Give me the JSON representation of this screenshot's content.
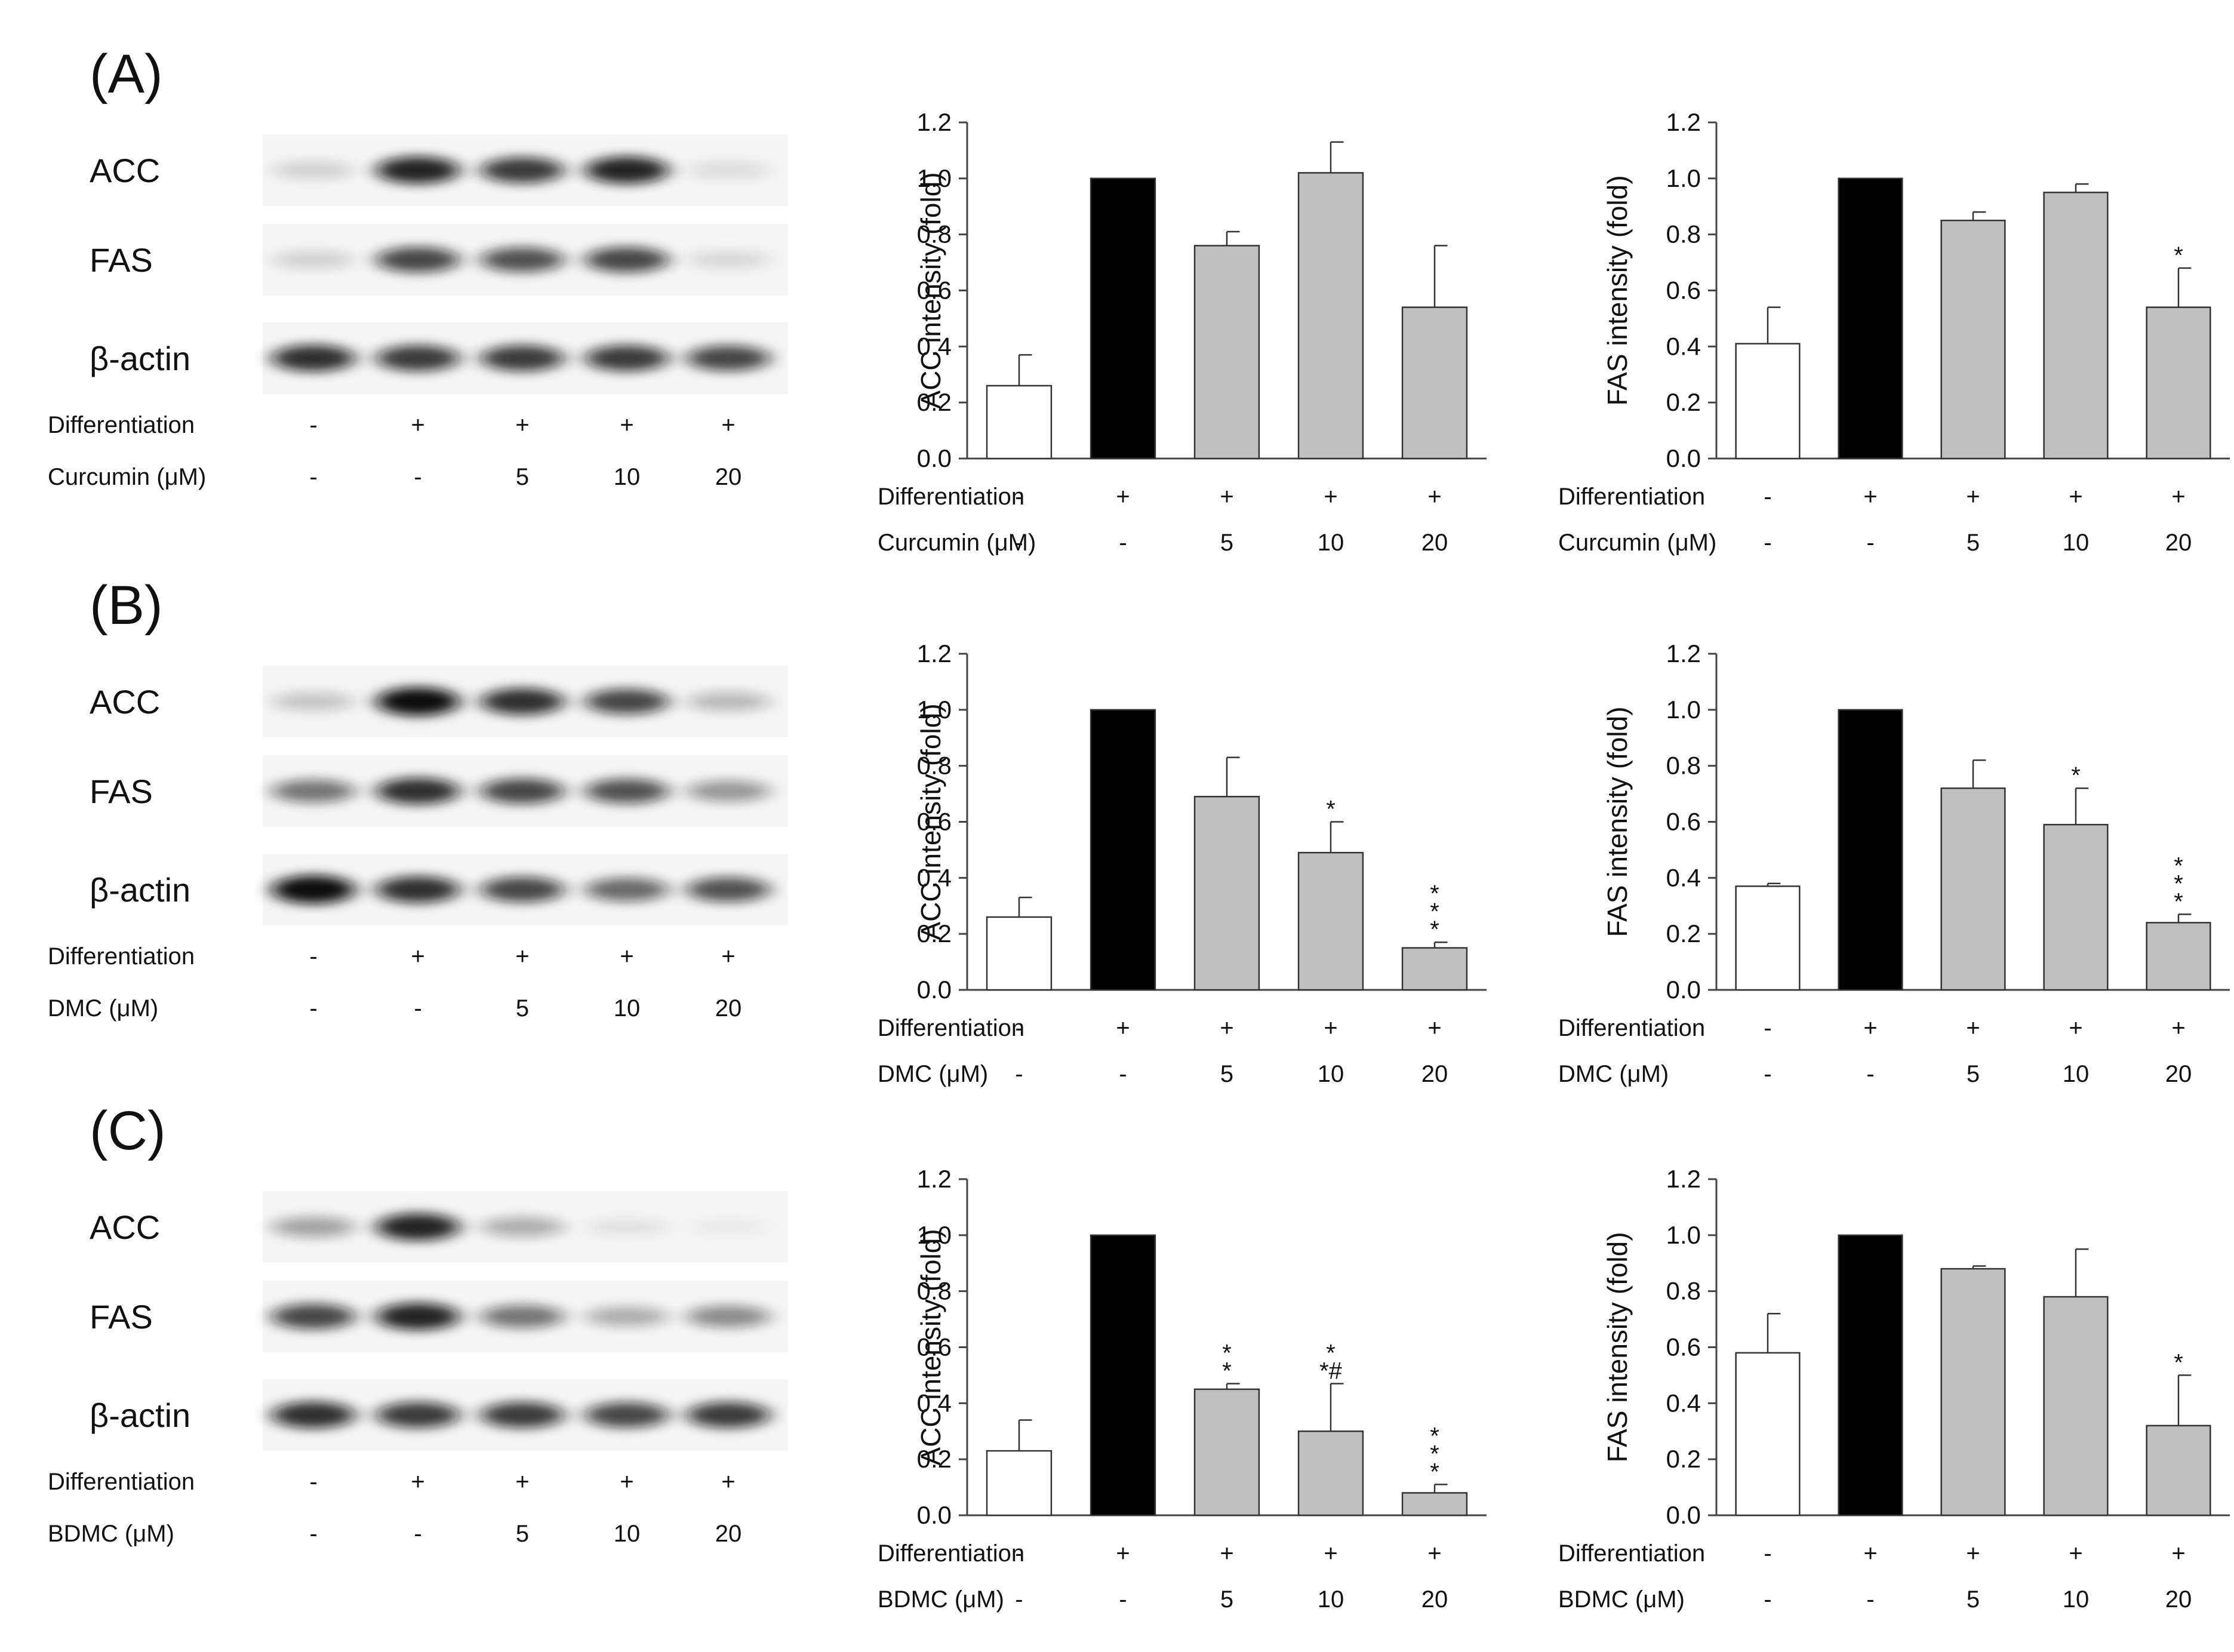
{
  "panels": [
    {
      "label": "(A)",
      "blot": {
        "proteins": [
          "ACC",
          "FAS",
          "β-actin"
        ],
        "intensities": [
          [
            0.15,
            0.9,
            0.8,
            0.9,
            0.1
          ],
          [
            0.15,
            0.75,
            0.7,
            0.75,
            0.12
          ],
          [
            0.85,
            0.8,
            0.8,
            0.8,
            0.75
          ]
        ],
        "row_labels": [
          "Differentiation",
          "Curcumin (μM)"
        ],
        "row_values": [
          [
            "-",
            "+",
            "+",
            "+",
            "+"
          ],
          [
            "-",
            "-",
            "5",
            "10",
            "20"
          ]
        ]
      }
    },
    {
      "label": "(B)",
      "blot": {
        "proteins": [
          "ACC",
          "FAS",
          "β-actin"
        ],
        "intensities": [
          [
            0.2,
            1.0,
            0.85,
            0.75,
            0.25
          ],
          [
            0.55,
            0.85,
            0.75,
            0.7,
            0.4
          ],
          [
            1.0,
            0.85,
            0.75,
            0.6,
            0.7
          ]
        ],
        "row_labels": [
          "Differentiation",
          "DMC (μM)"
        ],
        "row_values": [
          [
            "-",
            "+",
            "+",
            "+",
            "+"
          ],
          [
            "-",
            "-",
            "5",
            "10",
            "20"
          ]
        ]
      }
    },
    {
      "label": "(C)",
      "blot": {
        "proteins": [
          "ACC",
          "FAS",
          "β-actin"
        ],
        "intensities": [
          [
            0.35,
            0.9,
            0.3,
            0.08,
            0.03
          ],
          [
            0.75,
            0.9,
            0.55,
            0.3,
            0.45
          ],
          [
            0.85,
            0.8,
            0.8,
            0.75,
            0.8
          ]
        ],
        "row_labels": [
          "Differentiation",
          "BDMC (μM)"
        ],
        "row_values": [
          [
            "-",
            "+",
            "+",
            "+",
            "+"
          ],
          [
            "-",
            "-",
            "5",
            "10",
            "20"
          ]
        ]
      }
    }
  ],
  "chart_data": [
    {
      "type": "bar",
      "panel": "(A)",
      "ylabel": "ACC intensity (fold)",
      "ylim": [
        0,
        1.2
      ],
      "yticks": [
        "0.0",
        "0.2",
        "0.4",
        "0.6",
        "0.8",
        "1.0",
        "1.2"
      ],
      "values": [
        0.26,
        1.0,
        0.76,
        1.02,
        0.54
      ],
      "errors": [
        0.11,
        0,
        0.05,
        0.11,
        0.22
      ],
      "annotations": [
        "",
        "",
        "",
        "",
        ""
      ],
      "row_labels": [
        "Differentiation",
        "Curcumin (μM)"
      ],
      "row_values": [
        [
          "-",
          "+",
          "+",
          "+",
          "+"
        ],
        [
          "-",
          "-",
          "5",
          "10",
          "20"
        ]
      ]
    },
    {
      "type": "bar",
      "panel": "(A)",
      "ylabel": "FAS intensity (fold)",
      "ylim": [
        0,
        1.2
      ],
      "yticks": [
        "0.0",
        "0.2",
        "0.4",
        "0.6",
        "0.8",
        "1.0",
        "1.2"
      ],
      "values": [
        0.41,
        1.0,
        0.85,
        0.95,
        0.54
      ],
      "errors": [
        0.13,
        0,
        0.03,
        0.03,
        0.14
      ],
      "annotations": [
        "",
        "",
        "",
        "",
        "*"
      ],
      "row_labels": [
        "Differentiation",
        "Curcumin (μM)"
      ],
      "row_values": [
        [
          "-",
          "+",
          "+",
          "+",
          "+"
        ],
        [
          "-",
          "-",
          "5",
          "10",
          "20"
        ]
      ]
    },
    {
      "type": "bar",
      "panel": "(B)",
      "ylabel": "ACC intensity (fold)",
      "ylim": [
        0,
        1.2
      ],
      "yticks": [
        "0.0",
        "0.2",
        "0.4",
        "0.6",
        "0.8",
        "1.0",
        "1.2"
      ],
      "values": [
        0.26,
        1.0,
        0.69,
        0.49,
        0.15
      ],
      "errors": [
        0.07,
        0,
        0.14,
        0.11,
        0.02
      ],
      "annotations": [
        "",
        "",
        "",
        "*",
        "*\n*\n*"
      ],
      "row_labels": [
        "Differentiation",
        "DMC (μM)"
      ],
      "row_values": [
        [
          "-",
          "+",
          "+",
          "+",
          "+"
        ],
        [
          "-",
          "-",
          "5",
          "10",
          "20"
        ]
      ]
    },
    {
      "type": "bar",
      "panel": "(B)",
      "ylabel": "FAS intensity (fold)",
      "ylim": [
        0,
        1.2
      ],
      "yticks": [
        "0.0",
        "0.2",
        "0.4",
        "0.6",
        "0.8",
        "1.0",
        "1.2"
      ],
      "values": [
        0.37,
        1.0,
        0.72,
        0.59,
        0.24
      ],
      "errors": [
        0.01,
        0,
        0.1,
        0.13,
        0.03
      ],
      "annotations": [
        "",
        "",
        "",
        "*",
        "*\n*\n*"
      ],
      "row_labels": [
        "Differentiation",
        "DMC (μM)"
      ],
      "row_values": [
        [
          "-",
          "+",
          "+",
          "+",
          "+"
        ],
        [
          "-",
          "-",
          "5",
          "10",
          "20"
        ]
      ]
    },
    {
      "type": "bar",
      "panel": "(C)",
      "ylabel": "ACC intensity (fold)",
      "ylim": [
        0,
        1.2
      ],
      "yticks": [
        "0.0",
        "0.2",
        "0.4",
        "0.6",
        "0.8",
        "1.0",
        "1.2"
      ],
      "values": [
        0.23,
        1.0,
        0.45,
        0.3,
        0.08
      ],
      "errors": [
        0.11,
        0,
        0.02,
        0.17,
        0.03
      ],
      "annotations": [
        "",
        "",
        "*\n*",
        "*\n*#",
        "*\n*\n*"
      ],
      "row_labels": [
        "Differentiation",
        "BDMC (μM)"
      ],
      "row_values": [
        [
          "-",
          "+",
          "+",
          "+",
          "+"
        ],
        [
          "-",
          "-",
          "5",
          "10",
          "20"
        ]
      ]
    },
    {
      "type": "bar",
      "panel": "(C)",
      "ylabel": "FAS intensity (fold)",
      "ylim": [
        0,
        1.2
      ],
      "yticks": [
        "0.0",
        "0.2",
        "0.4",
        "0.6",
        "0.8",
        "1.0",
        "1.2"
      ],
      "values": [
        0.58,
        1.0,
        0.88,
        0.78,
        0.32
      ],
      "errors": [
        0.14,
        0,
        0.01,
        0.17,
        0.18
      ],
      "annotations": [
        "",
        "",
        "",
        "",
        "*"
      ],
      "row_labels": [
        "Differentiation",
        "BDMC (μM)"
      ],
      "row_values": [
        [
          "-",
          "+",
          "+",
          "+",
          "+"
        ],
        [
          "-",
          "-",
          "5",
          "10",
          "20"
        ]
      ]
    }
  ],
  "colors": {
    "control": "#ffffff",
    "differentiation": "#000000",
    "treatment": "#c0c0c0",
    "axis": "#444444",
    "blot_bg": "#ececec",
    "band": "#111111"
  }
}
